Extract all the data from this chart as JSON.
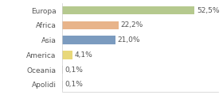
{
  "categories": [
    "Europa",
    "Africa",
    "Asia",
    "America",
    "Oceania",
    "Apolidi"
  ],
  "values": [
    52.5,
    22.2,
    21.0,
    4.1,
    0.1,
    0.1
  ],
  "labels": [
    "52,5%",
    "22,2%",
    "21,0%",
    "4,1%",
    "0,1%",
    "0,1%"
  ],
  "bar_colors": [
    "#b5c98e",
    "#e8b48a",
    "#7b9bbf",
    "#e8d87a",
    "#cccccc",
    "#cccccc"
  ],
  "background_color": "#ffffff",
  "xlim": [
    0,
    62
  ],
  "label_fontsize": 6.5,
  "tick_fontsize": 6.5,
  "bar_height": 0.55
}
